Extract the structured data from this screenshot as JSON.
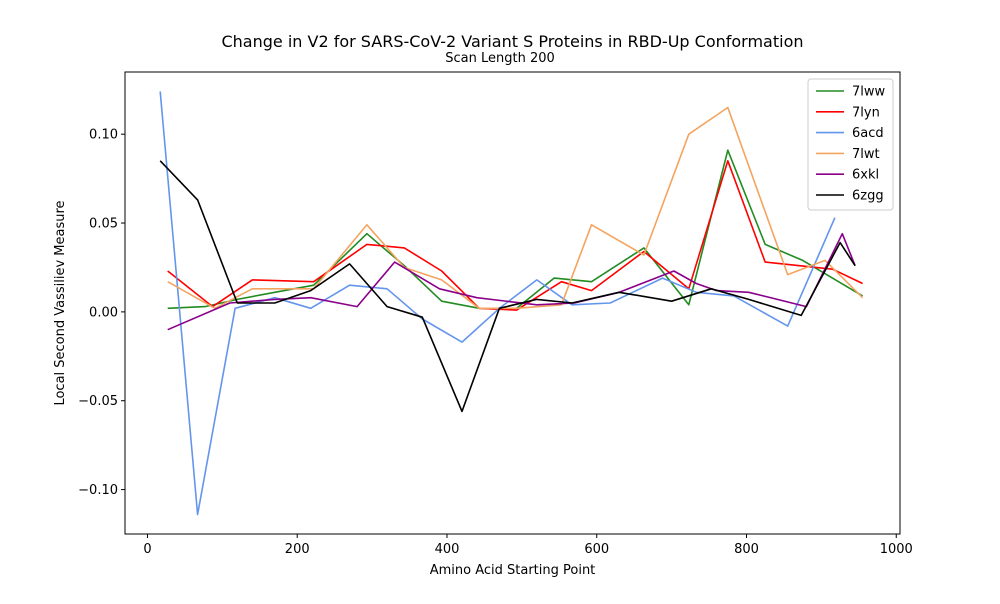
{
  "chart_data": {
    "type": "line",
    "title": "Change in V2 for SARS-CoV-2 Variant S Proteins in RBD-Up Conformation",
    "subtitle": "Scan Length 200",
    "xlabel": "Amino Acid Starting Point",
    "ylabel": "Local Second Vassiliev Measure",
    "xlim": [
      -30,
      1005
    ],
    "ylim": [
      -0.125,
      0.135
    ],
    "xticks": [
      0,
      200,
      400,
      600,
      800,
      1000
    ],
    "yticks": [
      -0.1,
      -0.05,
      0.0,
      0.05,
      0.1
    ],
    "xtick_labels": [
      "0",
      "200",
      "400",
      "600",
      "800",
      "1000"
    ],
    "ytick_labels": [
      "−0.10",
      "−0.05",
      "0.00",
      "0.05",
      "0.10"
    ],
    "grid": false,
    "legend_position": "top-right",
    "series": [
      {
        "name": "7lww",
        "color": "#228B22",
        "points": [
          [
            27,
            0.002
          ],
          [
            77,
            0.003
          ],
          [
            120,
            0.007
          ],
          [
            170,
            0.011
          ],
          [
            222,
            0.015
          ],
          [
            293,
            0.044
          ],
          [
            343,
            0.026
          ],
          [
            393,
            0.006
          ],
          [
            443,
            0.002
          ],
          [
            493,
            0.002
          ],
          [
            543,
            0.019
          ],
          [
            593,
            0.017
          ],
          [
            663,
            0.036
          ],
          [
            723,
            0.004
          ],
          [
            775,
            0.091
          ],
          [
            825,
            0.038
          ],
          [
            875,
            0.029
          ],
          [
            955,
            0.009
          ]
        ]
      },
      {
        "name": "7lyn",
        "color": "#FF0000",
        "points": [
          [
            27,
            0.023
          ],
          [
            87,
            0.003
          ],
          [
            140,
            0.018
          ],
          [
            222,
            0.017
          ],
          [
            293,
            0.038
          ],
          [
            343,
            0.036
          ],
          [
            393,
            0.023
          ],
          [
            443,
            0.002
          ],
          [
            493,
            0.001
          ],
          [
            553,
            0.017
          ],
          [
            593,
            0.012
          ],
          [
            663,
            0.034
          ],
          [
            723,
            0.013
          ],
          [
            775,
            0.085
          ],
          [
            825,
            0.028
          ],
          [
            915,
            0.024
          ],
          [
            955,
            0.016
          ]
        ]
      },
      {
        "name": "6acd",
        "color": "#6495ED",
        "points": [
          [
            17,
            0.124
          ],
          [
            67,
            -0.114
          ],
          [
            117,
            0.002
          ],
          [
            170,
            0.008
          ],
          [
            218,
            0.002
          ],
          [
            270,
            0.015
          ],
          [
            320,
            0.013
          ],
          [
            367,
            -0.004
          ],
          [
            420,
            -0.017
          ],
          [
            470,
            0.002
          ],
          [
            520,
            0.018
          ],
          [
            567,
            0.004
          ],
          [
            618,
            0.005
          ],
          [
            688,
            0.019
          ],
          [
            733,
            0.011
          ],
          [
            783,
            0.009
          ],
          [
            855,
            -0.008
          ],
          [
            918,
            0.053
          ]
        ]
      },
      {
        "name": "7lwt",
        "color": "#F4A460",
        "points": [
          [
            27,
            0.017
          ],
          [
            90,
            0.002
          ],
          [
            140,
            0.013
          ],
          [
            222,
            0.013
          ],
          [
            293,
            0.049
          ],
          [
            343,
            0.025
          ],
          [
            393,
            0.018
          ],
          [
            443,
            0.002
          ],
          [
            493,
            0.002
          ],
          [
            553,
            0.004
          ],
          [
            593,
            0.049
          ],
          [
            663,
            0.032
          ],
          [
            723,
            0.1
          ],
          [
            775,
            0.115
          ],
          [
            855,
            0.021
          ],
          [
            905,
            0.029
          ],
          [
            955,
            0.008
          ]
        ]
      },
      {
        "name": "6xkl",
        "color": "#8B008B",
        "points": [
          [
            27,
            -0.01
          ],
          [
            110,
            0.005
          ],
          [
            170,
            0.007
          ],
          [
            218,
            0.008
          ],
          [
            280,
            0.003
          ],
          [
            330,
            0.028
          ],
          [
            390,
            0.013
          ],
          [
            440,
            0.008
          ],
          [
            520,
            0.004
          ],
          [
            570,
            0.005
          ],
          [
            630,
            0.011
          ],
          [
            703,
            0.023
          ],
          [
            733,
            0.016
          ],
          [
            760,
            0.012
          ],
          [
            803,
            0.011
          ],
          [
            880,
            0.003
          ],
          [
            928,
            0.044
          ],
          [
            945,
            0.026
          ]
        ]
      },
      {
        "name": "6zgg",
        "color": "#000000",
        "points": [
          [
            17,
            0.085
          ],
          [
            67,
            0.063
          ],
          [
            120,
            0.005
          ],
          [
            170,
            0.005
          ],
          [
            218,
            0.012
          ],
          [
            270,
            0.027
          ],
          [
            320,
            0.003
          ],
          [
            367,
            -0.003
          ],
          [
            420,
            -0.056
          ],
          [
            470,
            0.002
          ],
          [
            520,
            0.007
          ],
          [
            567,
            0.005
          ],
          [
            630,
            0.011
          ],
          [
            700,
            0.006
          ],
          [
            753,
            0.013
          ],
          [
            803,
            0.007
          ],
          [
            873,
            -0.002
          ],
          [
            925,
            0.039
          ],
          [
            945,
            0.026
          ]
        ]
      }
    ]
  }
}
